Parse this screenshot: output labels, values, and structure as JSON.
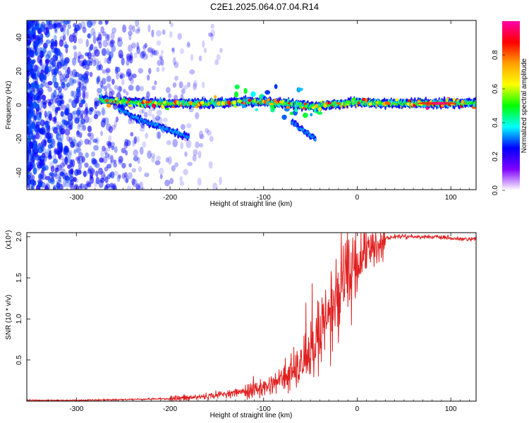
{
  "title": "C2E1.2025.064.07.04.R14",
  "chart_data": [
    {
      "type": "heatmap",
      "xlabel": "Height of straight line (km)",
      "ylabel": "Frequency (Hz)",
      "xlim": [
        -353,
        127
      ],
      "ylim": [
        -50,
        50
      ],
      "xticks": [
        -300,
        -200,
        -100,
        0,
        100
      ],
      "yticks": [
        -40,
        -20,
        0,
        20,
        40
      ],
      "grid": false,
      "colorbar": {
        "label": "Normalized spectral amplitude",
        "range": [
          0,
          1
        ],
        "ticks": [
          "0.0",
          "0.2",
          "0.4",
          "0.6",
          "0.8"
        ],
        "colors": [
          "#ff00aa",
          "#ff0000",
          "#ffa000",
          "#ffff00",
          "#00ff00",
          "#00ffff",
          "#0000ff",
          "#8000ff",
          "#ffffff"
        ]
      },
      "ridges": [
        {
          "x": [
            -275,
            -250,
            -220,
            -180,
            -150,
            -120,
            -100,
            -80,
            -60,
            -45,
            -30,
            -10,
            0,
            20,
            60,
            100,
            127
          ],
          "y": [
            3,
            2,
            1,
            1,
            1,
            2,
            2,
            1,
            0,
            -1,
            0,
            1,
            2,
            1,
            1,
            1,
            1
          ]
        },
        {
          "x": [
            -255,
            -235,
            -215,
            -195,
            -180
          ],
          "y": [
            -2,
            -8,
            -12,
            -16,
            -19
          ]
        },
        {
          "x": [
            -70,
            -60,
            -50,
            -44
          ],
          "y": [
            -10,
            -14,
            -18,
            -20
          ]
        }
      ]
    },
    {
      "type": "line",
      "xlabel": "Height of straight line (km)",
      "ylabel": "SNR (10 * v/v)",
      "yexponent": "(x10⁴)",
      "xlim": [
        -353,
        127
      ],
      "ylim": [
        0,
        2.05
      ],
      "xticks": [
        -300,
        -200,
        -100,
        0,
        100
      ],
      "yticks": [
        "0.5",
        "1.0",
        "1.5",
        "2.0"
      ],
      "grid": false,
      "series": [
        {
          "color": "#e02020",
          "x": [
            -353,
            -300,
            -250,
            -200,
            -180,
            -160,
            -140,
            -120,
            -100,
            -90,
            -80,
            -70,
            -60,
            -50,
            -40,
            -30,
            -20,
            -10,
            0,
            5,
            10,
            20,
            30,
            40,
            50,
            60,
            70,
            80,
            90,
            100,
            110,
            127
          ],
          "y": [
            0.01,
            0.01,
            0.02,
            0.03,
            0.04,
            0.06,
            0.09,
            0.12,
            0.16,
            0.22,
            0.28,
            0.34,
            0.42,
            0.55,
            0.8,
            1.05,
            1.25,
            1.45,
            1.6,
            1.7,
            1.8,
            1.9,
            1.98,
            2.0,
            2.01,
            2.0,
            2.0,
            2.0,
            1.99,
            1.98,
            1.97,
            1.97
          ]
        }
      ]
    }
  ]
}
